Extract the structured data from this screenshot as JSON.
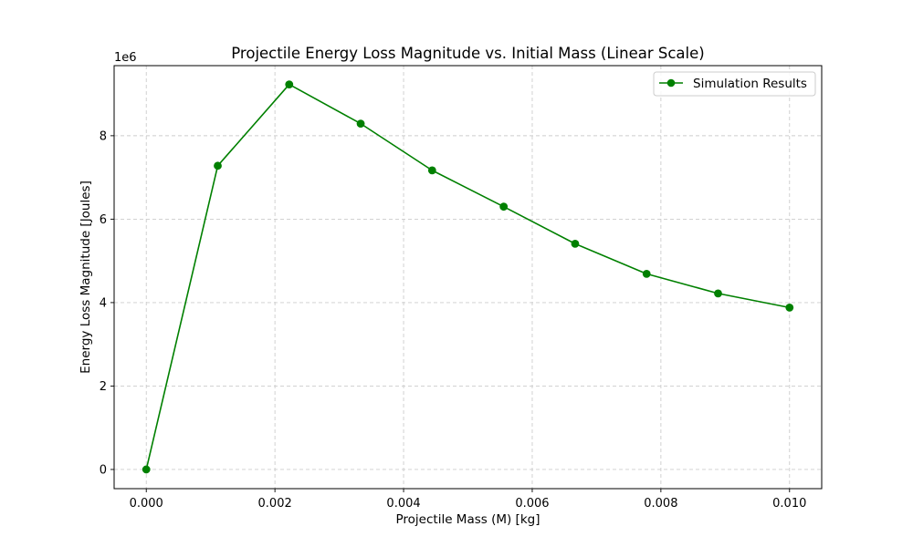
{
  "chart_data": {
    "type": "line",
    "title": "Projectile Energy Loss Magnitude vs. Initial Mass (Linear Scale)",
    "xlabel": "Projectile Mass (M) [kg]",
    "ylabel": "Energy Loss Magnitude [Joules]",
    "y_offset_label": "1e6",
    "y_scale_factor": 1000000,
    "xlim": [
      -0.0005,
      0.0105
    ],
    "ylim": [
      -460000,
      9680000
    ],
    "x_ticks": [
      0.0,
      0.002,
      0.004,
      0.006,
      0.008,
      0.01
    ],
    "x_tick_labels": [
      "0.000",
      "0.002",
      "0.004",
      "0.006",
      "0.008",
      "0.010"
    ],
    "y_ticks": [
      0,
      2000000,
      4000000,
      6000000,
      8000000
    ],
    "y_tick_labels": [
      "0",
      "2",
      "4",
      "6",
      "8"
    ],
    "grid": true,
    "legend_position": "top-right",
    "series": [
      {
        "name": "Simulation Results",
        "color": "#008000",
        "marker": "circle",
        "x": [
          0.0,
          0.001111,
          0.002222,
          0.003333,
          0.004444,
          0.005556,
          0.006667,
          0.007778,
          0.008889,
          0.01
        ],
        "y": [
          0,
          7280000,
          9230000,
          8290000,
          7170000,
          6300000,
          5410000,
          4690000,
          4220000,
          3880000
        ]
      }
    ]
  }
}
